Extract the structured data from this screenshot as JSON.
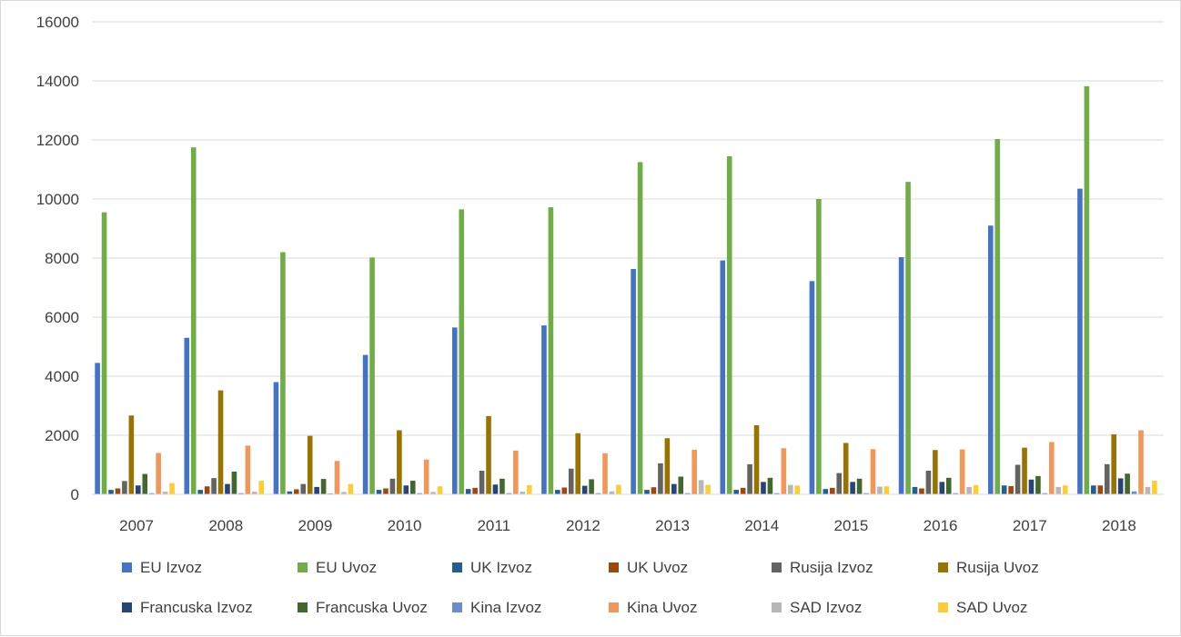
{
  "chart_data": {
    "type": "bar",
    "title": "",
    "xlabel": "",
    "ylabel": "",
    "ylim": [
      0,
      16000
    ],
    "yticks": [
      0,
      2000,
      4000,
      6000,
      8000,
      10000,
      12000,
      14000,
      16000
    ],
    "grid": true,
    "legend_position": "bottom",
    "categories": [
      "2007",
      "2008",
      "2009",
      "2010",
      "2011",
      "2012",
      "2013",
      "2014",
      "2015",
      "2016",
      "2017",
      "2018"
    ],
    "series": [
      {
        "name": "EU Izvoz",
        "color": "#4472C4",
        "values": [
          4450,
          5300,
          3800,
          4720,
          5650,
          5720,
          7630,
          7920,
          7220,
          8030,
          9100,
          10350
        ]
      },
      {
        "name": "EU Uvoz",
        "color": "#70AD47",
        "values": [
          9550,
          11750,
          8200,
          8020,
          9650,
          9720,
          11250,
          11450,
          10000,
          10580,
          12030,
          13820
        ]
      },
      {
        "name": "UK Izvoz",
        "color": "#255E91",
        "values": [
          150,
          150,
          100,
          150,
          180,
          150,
          150,
          150,
          180,
          250,
          300,
          300
        ]
      },
      {
        "name": "UK Uvoz",
        "color": "#9E480E",
        "values": [
          200,
          270,
          170,
          200,
          220,
          230,
          240,
          220,
          220,
          200,
          280,
          300
        ]
      },
      {
        "name": "Rusija Izvoz",
        "color": "#636363",
        "values": [
          450,
          550,
          350,
          530,
          800,
          870,
          1050,
          1020,
          720,
          800,
          1000,
          1020
        ]
      },
      {
        "name": "Rusija Uvoz",
        "color": "#997300",
        "values": [
          2670,
          3520,
          1980,
          2170,
          2650,
          2070,
          1900,
          2340,
          1740,
          1500,
          1580,
          2030
        ]
      },
      {
        "name": "Francuska Izvoz",
        "color": "#264478",
        "values": [
          300,
          350,
          250,
          300,
          330,
          290,
          350,
          420,
          420,
          420,
          500,
          540
        ]
      },
      {
        "name": "Francuska Uvoz",
        "color": "#43682B",
        "values": [
          690,
          770,
          520,
          460,
          530,
          510,
          600,
          560,
          530,
          560,
          620,
          700
        ]
      },
      {
        "name": "Kina Izvoz",
        "color": "#698ED0",
        "values": [
          40,
          40,
          30,
          40,
          40,
          40,
          40,
          40,
          40,
          40,
          40,
          100
        ]
      },
      {
        "name": "Kina Uvoz",
        "color": "#F1975A",
        "values": [
          1400,
          1650,
          1130,
          1180,
          1480,
          1390,
          1510,
          1560,
          1530,
          1520,
          1770,
          2170
        ]
      },
      {
        "name": "SAD Izvoz",
        "color": "#B7B7B7",
        "values": [
          90,
          90,
          80,
          80,
          90,
          100,
          480,
          320,
          260,
          250,
          250,
          250
        ]
      },
      {
        "name": "SAD Uvoz",
        "color": "#FFCD33",
        "values": [
          380,
          460,
          350,
          270,
          310,
          320,
          320,
          300,
          270,
          310,
          300,
          460
        ]
      }
    ]
  }
}
